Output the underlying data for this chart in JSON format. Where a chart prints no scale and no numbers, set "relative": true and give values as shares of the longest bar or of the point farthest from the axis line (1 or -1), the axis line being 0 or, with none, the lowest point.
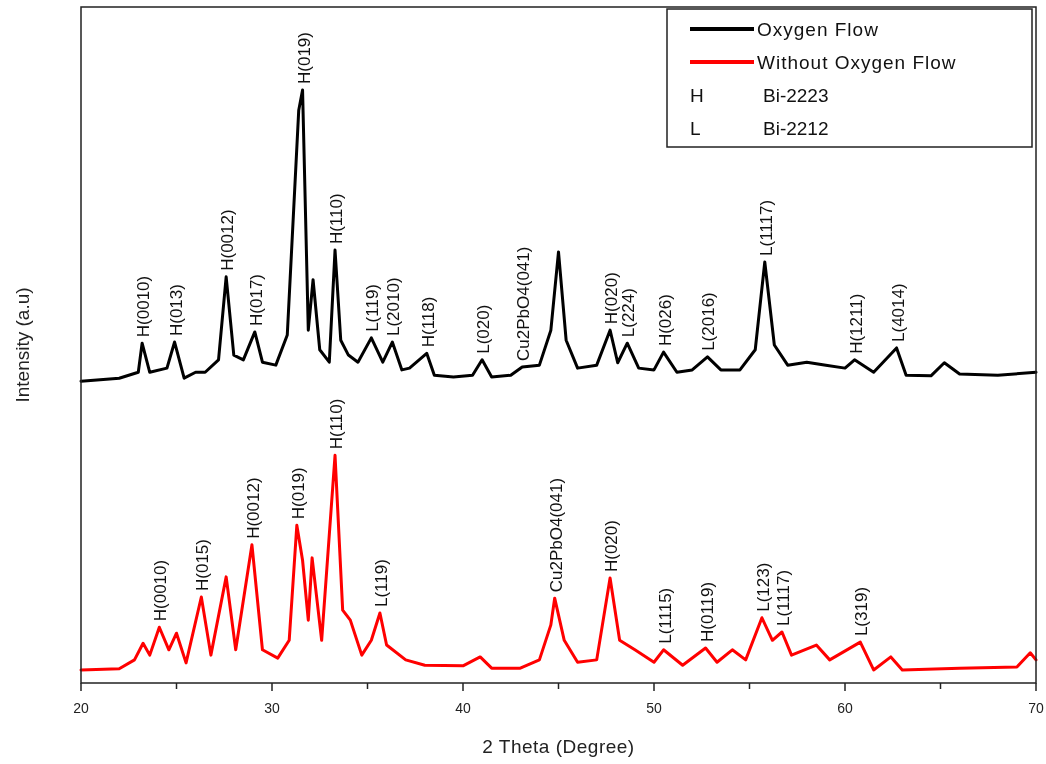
{
  "chart_data": {
    "type": "line",
    "xlabel": "2 Theta (Degree)",
    "ylabel": "Intensity (a.u)",
    "relative": true,
    "legend": "top right",
    "grid": false,
    "line_style": "solid",
    "marker": "none",
    "xlim": [
      20,
      70
    ],
    "xticks": [
      20,
      {
        "value": 25,
        "label": null
      },
      30,
      {
        "value": 35,
        "label": null
      },
      40,
      {
        "value": 45,
        "label": null
      },
      50,
      {
        "value": 55,
        "label": null
      },
      60,
      {
        "value": 65,
        "label": null
      },
      70
    ],
    "series": [
      {
        "name": "Oxygen Flow",
        "color": "#000000",
        "x": [
          20,
          22,
          23,
          23.2,
          23.6,
          24.5,
          24.9,
          25.4,
          26,
          26.5,
          27.2,
          27.6,
          28,
          28.5,
          29.1,
          29.5,
          30.2,
          30.8,
          31.4,
          31.6,
          31.9,
          32.15,
          32.5,
          33,
          33.3,
          33.6,
          34,
          34.5,
          35.2,
          35.8,
          36.3,
          36.8,
          37.2,
          38.1,
          38.5,
          39.5,
          40.5,
          41,
          41.5,
          42.5,
          43.1,
          44,
          44.6,
          45,
          45.4,
          46,
          47,
          47.7,
          48.1,
          48.6,
          49.2,
          50,
          50.5,
          51.2,
          52,
          52.8,
          53.5,
          54.5,
          55.3,
          55.8,
          56.3,
          57,
          58,
          59,
          60,
          60.5,
          61.5,
          62.7,
          63.2,
          64.5,
          65.2,
          66,
          68,
          70
        ],
        "values": [
          0.509,
          0.514,
          0.524,
          0.573,
          0.524,
          0.531,
          0.575,
          0.514,
          0.524,
          0.524,
          0.545,
          0.685,
          0.553,
          0.545,
          0.592,
          0.541,
          0.536,
          0.587,
          0.966,
          1,
          0.595,
          0.68,
          0.562,
          0.541,
          0.73,
          0.578,
          0.553,
          0.541,
          0.582,
          0.541,
          0.575,
          0.528,
          0.531,
          0.556,
          0.519,
          0.516,
          0.519,
          0.545,
          0.516,
          0.519,
          0.533,
          0.536,
          0.595,
          0.727,
          0.578,
          0.531,
          0.536,
          0.595,
          0.54,
          0.573,
          0.531,
          0.528,
          0.558,
          0.524,
          0.528,
          0.55,
          0.528,
          0.528,
          0.562,
          0.71,
          0.57,
          0.536,
          0.541,
          0.536,
          0.531,
          0.545,
          0.524,
          0.565,
          0.519,
          0.518,
          0.54,
          0.521,
          0.519,
          0.524
        ]
      },
      {
        "name": "Without Oxygen Flow",
        "color": "#ff0000",
        "x": [
          20,
          22,
          22.8,
          23.25,
          23.6,
          24.1,
          24.6,
          25,
          25.5,
          26.3,
          26.8,
          27.6,
          28.1,
          28.95,
          29.5,
          30.3,
          30.9,
          31.3,
          31.6,
          31.9,
          32.1,
          32.6,
          33.3,
          33.7,
          34.1,
          34.7,
          35.2,
          35.65,
          36,
          37,
          38,
          40,
          40.9,
          41.5,
          43,
          44,
          44.6,
          44.8,
          45.3,
          46,
          47,
          47.7,
          48.2,
          49,
          50,
          50.5,
          51.5,
          52.7,
          53.3,
          54.1,
          54.8,
          55.65,
          56.2,
          56.7,
          57.2,
          58.5,
          59.2,
          60.8,
          61.5,
          62.4,
          63,
          66,
          69,
          69.7,
          70
        ],
        "values": [
          0.022,
          0.024,
          0.039,
          0.067,
          0.047,
          0.094,
          0.056,
          0.084,
          0.034,
          0.145,
          0.047,
          0.179,
          0.056,
          0.233,
          0.056,
          0.042,
          0.072,
          0.266,
          0.207,
          0.106,
          0.211,
          0.072,
          0.384,
          0.123,
          0.106,
          0.047,
          0.072,
          0.118,
          0.064,
          0.039,
          0.03,
          0.029,
          0.044,
          0.025,
          0.025,
          0.039,
          0.098,
          0.143,
          0.072,
          0.035,
          0.039,
          0.177,
          0.072,
          0.056,
          0.035,
          0.056,
          0.03,
          0.059,
          0.035,
          0.056,
          0.039,
          0.11,
          0.072,
          0.086,
          0.047,
          0.064,
          0.039,
          0.069,
          0.022,
          0.044,
          0.022,
          0.025,
          0.027,
          0.051,
          0.039
        ]
      }
    ],
    "annotations": [
      "H Bi-2223",
      "L Bi-2212",
      {
        "text": "H(0010)",
        "x": 23.2,
        "y": 0.573
      },
      {
        "text": "H(013)",
        "x": 24.9,
        "y": 0.575
      },
      {
        "text": "H(0012)",
        "x": 27.6,
        "y": 0.685
      },
      {
        "text": "H(017)",
        "x": 29.1,
        "y": 0.592
      },
      {
        "text": "H(019)",
        "x": 31.6,
        "y": 1
      },
      {
        "text": "H(110)",
        "x": 33.3,
        "y": 0.73
      },
      {
        "text": "L(119)",
        "x": 35.2,
        "y": 0.582
      },
      {
        "text": "L(2010)",
        "x": 36.3,
        "y": 0.575
      },
      {
        "text": "H(118)",
        "x": 38.1,
        "y": 0.556
      },
      {
        "text": "L(020)",
        "x": 41,
        "y": 0.545
      },
      {
        "text": "Cu2PbO4(041)",
        "x": 43.1,
        "y": 0.533
      },
      {
        "text": "H(020)",
        "x": 47.7,
        "y": 0.595
      },
      {
        "text": "L(224)",
        "x": 48.6,
        "y": 0.573
      },
      {
        "text": "H(026)",
        "x": 50.5,
        "y": 0.558
      },
      {
        "text": "L(2016)",
        "x": 52.8,
        "y": 0.55
      },
      {
        "text": "L(1117)",
        "x": 55.8,
        "y": 0.71
      },
      {
        "text": "H(1211)",
        "x": 60.5,
        "y": 0.545
      },
      {
        "text": "L(4014)",
        "x": 62.7,
        "y": 0.565
      },
      {
        "text": "H(0010)",
        "x": 24.1,
        "y": 0.094
      },
      {
        "text": "H(015)",
        "x": 26.3,
        "y": 0.145
      },
      {
        "text": "H(0012)",
        "x": 28.95,
        "y": 0.233
      },
      {
        "text": "H(019)",
        "x": 31.3,
        "y": 0.266
      },
      {
        "text": "H(110)",
        "x": 33.3,
        "y": 0.384
      },
      {
        "text": "L(119)",
        "x": 35.65,
        "y": 0.118
      },
      {
        "text": "Cu2PbO4(041)",
        "x": 44.8,
        "y": 0.143
      },
      {
        "text": "H(020)",
        "x": 47.7,
        "y": 0.177
      },
      {
        "text": "L(1115)",
        "x": 50.5,
        "y": 0.056
      },
      {
        "text": "H(0119)",
        "x": 52.7,
        "y": 0.059
      },
      {
        "text": "L(123)",
        "x": 55.65,
        "y": 0.11
      },
      {
        "text": "L(1117)",
        "x": 56.7,
        "y": 0.086
      },
      {
        "text": "L(319)",
        "x": 60.8,
        "y": 0.069
      }
    ]
  }
}
